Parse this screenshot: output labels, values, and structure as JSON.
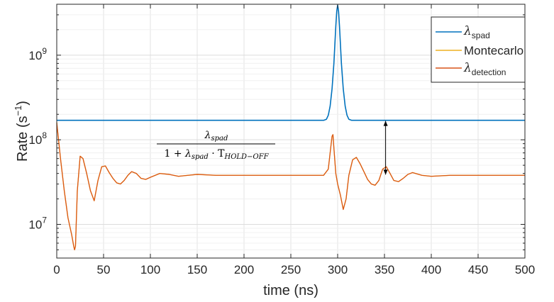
{
  "chart_data": {
    "type": "line",
    "xlabel": "time (ns)",
    "ylabel": "Rate (s",
    "ylabel_sup": "−1",
    "ylabel_close": ")",
    "xlim": [
      0,
      500
    ],
    "ylim": [
      4000000,
      4000000000
    ],
    "yscale": "log",
    "grid": true,
    "legend_position": "top-right",
    "x_ticks": [
      0,
      50,
      100,
      150,
      200,
      250,
      300,
      350,
      400,
      450,
      500
    ],
    "x_tick_labels": [
      "0",
      "50",
      "100",
      "150",
      "200",
      "250",
      "300",
      "350",
      "400",
      "450",
      "500"
    ],
    "y_ticks": [
      {
        "value": 10000000,
        "base": "10",
        "exp": "7"
      },
      {
        "value": 100000000,
        "base": "10",
        "exp": "8"
      },
      {
        "value": 1000000000,
        "base": "10",
        "exp": "9"
      }
    ],
    "series": [
      {
        "name": "λ",
        "name_sub": "spad",
        "color": "#0072BD",
        "x": [
          0,
          285,
          288,
          290,
          292,
          294,
          296,
          297,
          298,
          299,
          300,
          301,
          302,
          303,
          304,
          306,
          308,
          310,
          312,
          315,
          500
        ],
        "y": [
          170000000,
          170000000,
          175000000,
          195000000,
          250000000,
          400000000,
          800000000,
          1300000000,
          2200000000,
          3300000000,
          3900000000,
          3300000000,
          2200000000,
          1300000000,
          800000000,
          400000000,
          250000000,
          195000000,
          175000000,
          170000000,
          170000000
        ]
      },
      {
        "name": "Montecarlo",
        "color": "#EDB120",
        "x": [
          0,
          4,
          8,
          12,
          16,
          18,
          19,
          20,
          22,
          25,
          28,
          32,
          36,
          40,
          44,
          48,
          52,
          56,
          60,
          64,
          68,
          72,
          76,
          80,
          85,
          90,
          95,
          100,
          110,
          120,
          130,
          140,
          150,
          170,
          200,
          230,
          260,
          285,
          290,
          292,
          294,
          295,
          296,
          298,
          300,
          303,
          306,
          309,
          312,
          316,
          320,
          324,
          328,
          332,
          336,
          340,
          344,
          348,
          352,
          356,
          360,
          365,
          370,
          375,
          380,
          390,
          400,
          420,
          450,
          480,
          500
        ],
        "y": [
          160000000,
          60000000,
          25000000,
          12000000,
          7500000,
          5600000,
          5000000,
          5500000,
          25000000,
          64000000,
          60000000,
          40000000,
          25000000,
          19000000,
          33000000,
          48000000,
          49000000,
          41000000,
          35000000,
          31000000,
          30000000,
          33000000,
          38000000,
          42000000,
          40000000,
          35000000,
          34000000,
          36000000,
          40000000,
          39000000,
          37000000,
          38000000,
          39000000,
          38000000,
          38000000,
          38000000,
          38000000,
          38000000,
          45000000,
          70000000,
          110000000,
          115000000,
          80000000,
          40000000,
          30000000,
          22000000,
          15000000,
          20000000,
          38000000,
          58000000,
          62000000,
          52000000,
          42000000,
          34000000,
          30000000,
          29000000,
          33000000,
          45000000,
          48000000,
          40000000,
          33000000,
          32000000,
          35000000,
          39000000,
          41000000,
          38000000,
          37000000,
          38000000,
          38000000,
          38000000,
          38000000
        ]
      },
      {
        "name": "λ",
        "name_sub": "detection",
        "color": "#D95319",
        "x": [
          0,
          4,
          8,
          12,
          16,
          18,
          19,
          20,
          22,
          25,
          28,
          32,
          36,
          40,
          44,
          48,
          52,
          56,
          60,
          64,
          68,
          72,
          76,
          80,
          85,
          90,
          95,
          100,
          110,
          120,
          130,
          140,
          150,
          170,
          200,
          230,
          260,
          285,
          290,
          292,
          294,
          295,
          296,
          298,
          300,
          303,
          306,
          309,
          312,
          316,
          320,
          324,
          328,
          332,
          336,
          340,
          344,
          348,
          352,
          356,
          360,
          365,
          370,
          375,
          380,
          390,
          400,
          420,
          450,
          480,
          500
        ],
        "y": [
          160000000,
          60000000,
          25000000,
          12000000,
          7500000,
          5600000,
          5000000,
          5500000,
          25000000,
          64000000,
          60000000,
          40000000,
          25000000,
          19000000,
          33000000,
          48000000,
          49000000,
          41000000,
          35000000,
          31000000,
          30000000,
          33000000,
          38000000,
          42000000,
          40000000,
          35000000,
          34000000,
          36000000,
          40000000,
          39000000,
          37000000,
          38000000,
          39000000,
          38000000,
          38000000,
          38000000,
          38000000,
          38000000,
          45000000,
          70000000,
          110000000,
          115000000,
          80000000,
          40000000,
          30000000,
          22000000,
          15000000,
          20000000,
          38000000,
          58000000,
          62000000,
          52000000,
          42000000,
          34000000,
          30000000,
          29000000,
          33000000,
          45000000,
          48000000,
          40000000,
          33000000,
          32000000,
          35000000,
          39000000,
          41000000,
          38000000,
          37000000,
          38000000,
          38000000,
          38000000,
          38000000
        ]
      }
    ],
    "annotation": {
      "x": 230,
      "y_top": 170000000,
      "y_bottom": 38000000,
      "numerator": "λ",
      "numerator_sub": "spad",
      "denominator_prefix": "1 + ",
      "denominator_lambda": "λ",
      "denominator_sub1": "spad",
      "denominator_dot": " · T",
      "denominator_sub2": "HOLD−OFF"
    }
  }
}
